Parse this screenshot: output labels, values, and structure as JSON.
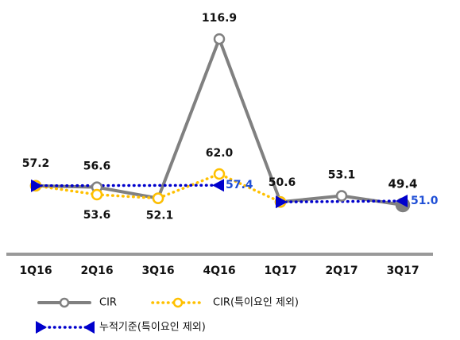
{
  "chart_data": {
    "type": "line",
    "categories": [
      "1Q16",
      "2Q16",
      "3Q16",
      "4Q16",
      "1Q17",
      "2Q17",
      "3Q17"
    ],
    "ylim": [
      30,
      125
    ],
    "span_gaps": true,
    "series": [
      {
        "name": "CIR",
        "color": "#808080",
        "style": "solid",
        "marker": "circle",
        "values": [
          57.2,
          56.6,
          52.1,
          116.9,
          50.6,
          53.1,
          49.4
        ],
        "value_labels": [
          "57.2",
          "56.6",
          "52.1",
          "116.9",
          "50.6",
          "53.1",
          "49.4"
        ]
      },
      {
        "name": "CIR(특이요인 제외)",
        "color": "#ffc000",
        "style": "dotted",
        "marker": "circle",
        "values": [
          57.2,
          53.6,
          52.1,
          62.0,
          50.6,
          null,
          null
        ],
        "value_labels": [
          null,
          "53.6",
          null,
          "62.0",
          null,
          null,
          null
        ]
      },
      {
        "name": "누적기준(특이요인 제외)",
        "color": "#0000cc",
        "style": "dotted",
        "marker": "triangle",
        "values": [
          57.2,
          null,
          null,
          57.4,
          null,
          null,
          null
        ],
        "value_labels": [
          null,
          null,
          null,
          "57.4",
          null,
          null,
          null
        ]
      },
      {
        "color": "#0000cc",
        "style": "dotted",
        "marker": "triangle",
        "values": [
          null,
          null,
          null,
          null,
          50.6,
          null,
          51.0
        ],
        "value_labels": [
          null,
          null,
          null,
          null,
          null,
          null,
          "51.0"
        ]
      }
    ]
  }
}
